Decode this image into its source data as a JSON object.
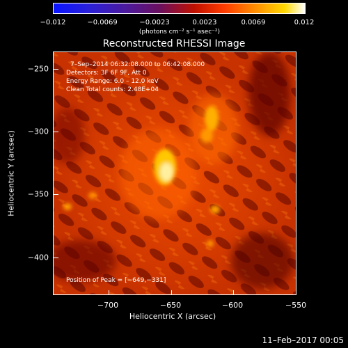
{
  "colorbar": {
    "ticks": [
      "−0.012",
      "−0.0069",
      "−0.0023",
      "0.0023",
      "0.0069",
      "0.012"
    ],
    "unit": "(photons cm⁻² s⁻¹ asec⁻²)"
  },
  "title": "Reconstructed RHESSI Image",
  "info": {
    "time": "7–Sep–2014 06:32:08.000 to 06:42:08.000",
    "detectors": "Detectors: 3F 6F 9F, Att 0",
    "energy": "Energy Range: 6.0 – 12.0 keV",
    "clean": "Clean     Total counts: 2.48E+04",
    "peak": "Position of Peak = [−649,−331]"
  },
  "axes": {
    "xlabel": "Heliocentric X (arcsec)",
    "ylabel": "Heliocentric Y (arcsec)",
    "xticks": [
      "−700",
      "−650",
      "−600",
      "−550"
    ],
    "yticks": [
      "−250",
      "−300",
      "−350",
      "−400"
    ]
  },
  "footer": "11–Feb–2017 00:05"
}
